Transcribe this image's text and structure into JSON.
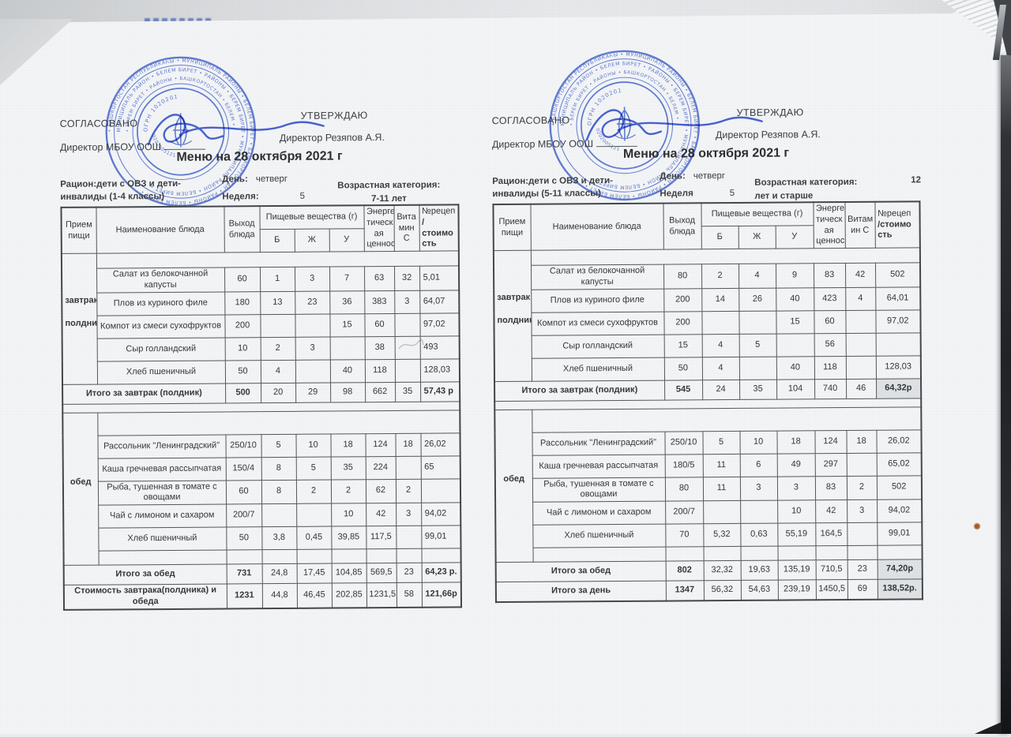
{
  "colors": {
    "stamp_blue": "#4c68c8",
    "signature_blue": "#3b55c8",
    "paper": "#f2f4f6",
    "scanner_edge": "#1f2326",
    "stain_orange": "#a85a28"
  },
  "stamp": {
    "ring1": "• БАШКОРТОСТАН РЕСПУБЛИКАҺЫ • МУНИЦИПАЛЬ РАЙОНЫ • БЕЛЕМ БИРЕТ • БАШКОРТОСТАН • РАЙОНЫ • БЕЛЕМ БИРЕТ •",
    "ring2": "МУНИЦИПАЛЬ РАЙОН • БЕЛЕМ БИРЕТ • РАЙОНЫ • БЕРЕМ БИРЕТ • МУНИЦИПАЛЬ РАЙОН • БЕЛЕМ БИРЕТ •",
    "ring3": "• БЕРЕМ БИРЕТ • РАЙОНЫ • БАШКОРТОСТАН • БЕЛЕМ •",
    "ogrn": "ОГРН 1020201",
    "inner_digits": "0202005121"
  },
  "pages": [
    {
      "agreed_label": "СОГЛАСОВАНО",
      "agreed_line": "Директор МБОУ ООШ",
      "approved_label": "УТВЕРЖДАЮ",
      "approved_name": "Директор Резяпов А.Я.",
      "title": "Меню на 28 октября 2021 г",
      "ration": "Рацион:дети с ОВЗ и дети-\nинвалиды (1-4 классы)",
      "day_label": "День:",
      "day_value": "четверг",
      "week_label": "Неделя:",
      "week_value": "5",
      "age_label": "Возрастная категория:",
      "age_value": "7-11 лет",
      "age_extra": "",
      "table": {
        "headers": {
          "meal": "Прием\nпищи",
          "dish": "Наименование блюда",
          "out": "Выход\nблюда",
          "nutrients": "Пищевые вещества (г)",
          "protein": "Б",
          "fat": "Ж",
          "carbs": "У",
          "energy": "Энерге-\nтическ\nая\nценнос",
          "vitc": "Вита\nмин\nС",
          "recipe1": "№рецеп",
          "recipe2": "/стоимо\nсть"
        },
        "meals": [
          {
            "labels": [
              "завтрак",
              "полдник"
            ],
            "dishes": [
              [
                "Салат из белокочанной капусты",
                "60",
                "1",
                "3",
                "7",
                "63",
                "32",
                "5,01"
              ],
              [
                "Плов из куриного филе",
                "180",
                "13",
                "23",
                "36",
                "383",
                "3",
                "64,07"
              ],
              [
                "Компот из смеси сухофруктов",
                "200",
                "",
                "",
                "15",
                "60",
                "",
                "97,02"
              ],
              [
                "Сыр голландский",
                "10",
                "2",
                "3",
                "",
                "38",
                "",
                "493"
              ],
              [
                "Хлеб пшеничный",
                "50",
                "4",
                "",
                "40",
                "118",
                "",
                "128,03"
              ]
            ],
            "total": [
              "Итого за завтрак (полдник)",
              "500",
              "20",
              "29",
              "98",
              "662",
              "35",
              "57,43 р"
            ]
          },
          {
            "labels": [
              "обед"
            ],
            "dishes": [
              [
                "Рассольник \"Ленинградский\"",
                "250/10",
                "5",
                "10",
                "18",
                "124",
                "18",
                "26,02"
              ],
              [
                "Каша гречневая рассыпчатая",
                "150/4",
                "8",
                "5",
                "35",
                "224",
                "",
                "65"
              ],
              [
                "Рыба, тушенная в томате с овощами",
                "60",
                "8",
                "2",
                "2",
                "62",
                "2",
                ""
              ],
              [
                "Чай с лимоном и сахаром",
                "200/7",
                "",
                "",
                "10",
                "42",
                "3",
                "94,02"
              ],
              [
                "Хлеб пшеничный",
                "50",
                "3,8",
                "0,45",
                "39,85",
                "117,5",
                "",
                "99,01"
              ],
              [
                "",
                "",
                "",
                "",
                "",
                "",
                "",
                ""
              ]
            ],
            "total": [
              "Итого за обед",
              "731",
              "24,8",
              "17,45",
              "104,85",
              "569,5",
              "23",
              "64,23 р."
            ]
          }
        ],
        "grand": [
          [
            "Стоимость завтрака(полдника) и обеда",
            "1231",
            "44,8",
            "46,45",
            "202,85",
            "1231,5",
            "58",
            "121,66р"
          ]
        ]
      }
    },
    {
      "agreed_label": "СОГЛАСОВАНО",
      "agreed_line": "Директор МБОУ ООШ",
      "approved_label": "УТВЕРЖДАЮ",
      "approved_name": "Директор Резяпов А.Я.",
      "title": "Меню на 28 октября 2021 г",
      "ration": "Рацион:дети с ОВЗ и дети-\nинвалиды (5-11 классы)",
      "day_label": "День:",
      "day_value": "четверг",
      "week_label": "Неделя",
      "week_value": "5",
      "age_label": "Возрастная категория:",
      "age_value": "лет и старше",
      "age_extra": "12",
      "table": {
        "headers": {
          "meal": "Прием\nпищи",
          "dish": "Наименование блюда",
          "out": "Выход\nблюда",
          "nutrients": "Пищевые вещества (г)",
          "protein": "Б",
          "fat": "Ж",
          "carbs": "У",
          "energy": "Энерге-\nтическ\nая\nценнос",
          "vitc": "Витам\nин С",
          "recipe1": "№рецеп",
          "recipe2": "/стоимо\nсть"
        },
        "meals": [
          {
            "labels": [
              "завтрак",
              "полдник"
            ],
            "dishes": [
              [
                "Салат из белокочанной капусты",
                "80",
                "2",
                "4",
                "9",
                "83",
                "42",
                "502"
              ],
              [
                "Плов из куриного филе",
                "200",
                "14",
                "26",
                "40",
                "423",
                "4",
                "64,01"
              ],
              [
                "Компот из смеси сухофруктов",
                "200",
                "",
                "",
                "15",
                "60",
                "",
                "97,02"
              ],
              [
                "Сыр голландский",
                "15",
                "4",
                "5",
                "",
                "56",
                "",
                ""
              ],
              [
                "Хлеб пшеничный",
                "50",
                "4",
                "",
                "40",
                "118",
                "",
                "128,03"
              ]
            ],
            "total": [
              "Итого за завтрак (полдник)",
              "545",
              "24",
              "35",
              "104",
              "740",
              "46",
              "64,32р"
            ]
          },
          {
            "labels": [
              "обед"
            ],
            "dishes": [
              [
                "Рассольник \"Ленинградский\"",
                "250/10",
                "5",
                "10",
                "18",
                "124",
                "18",
                "26,02"
              ],
              [
                "Каша гречневая рассыпчатая",
                "180/5",
                "11",
                "6",
                "49",
                "297",
                "",
                "65,02"
              ],
              [
                "Рыба, тушенная в томате с овощами",
                "80",
                "11",
                "3",
                "3",
                "83",
                "2",
                "502"
              ],
              [
                "Чай с лимоном и сахаром",
                "200/7",
                "",
                "",
                "10",
                "42",
                "3",
                "94,02"
              ],
              [
                "Хлеб пшеничный",
                "70",
                "5,32",
                "0,63",
                "55,19",
                "164,5",
                "",
                "99,01"
              ],
              [
                "",
                "",
                "",
                "",
                "",
                "",
                "",
                ""
              ]
            ],
            "total": [
              "Итого за обед",
              "802",
              "32,32",
              "19,63",
              "135,19",
              "710,5",
              "23",
              "74,20р"
            ]
          }
        ],
        "grand": [
          [
            "Итого за день",
            "1347",
            "56,32",
            "54,63",
            "239,19",
            "1450,5",
            "69",
            "138,52р."
          ]
        ]
      }
    }
  ]
}
